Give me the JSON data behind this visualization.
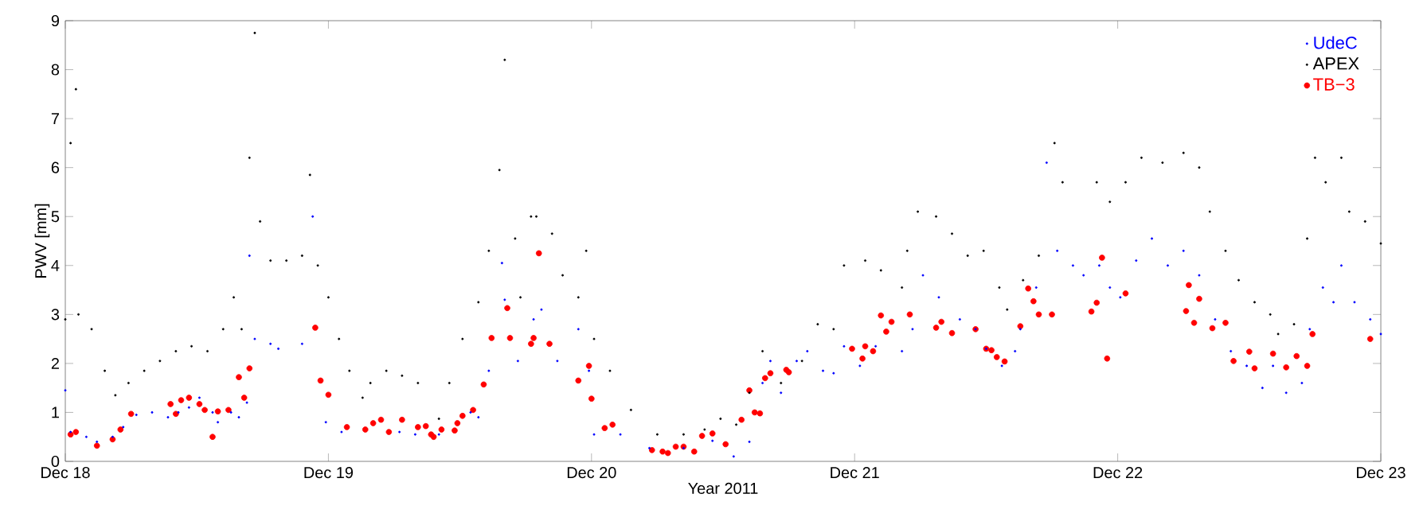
{
  "chart_data": {
    "type": "scatter",
    "xlabel": "Year 2011",
    "ylabel": "PWV [mm]",
    "xlim": [
      "2011-12-18",
      "2011-12-23"
    ],
    "ylim": [
      0,
      9
    ],
    "xticks": [
      {
        "value": "2011-12-18",
        "label": "Dec 18"
      },
      {
        "value": "2011-12-19",
        "label": "Dec 19"
      },
      {
        "value": "2011-12-20",
        "label": "Dec 20"
      },
      {
        "value": "2011-12-21",
        "label": "Dec 21"
      },
      {
        "value": "2011-12-22",
        "label": "Dec 22"
      },
      {
        "value": "2011-12-23",
        "label": "Dec 23"
      }
    ],
    "yticks": [
      0,
      1,
      2,
      3,
      4,
      5,
      6,
      7,
      8,
      9
    ],
    "legend": "top right",
    "series": [
      {
        "name": "UdeC",
        "color": "#0000ff",
        "x": [
          "2011-12-18T00:00",
          "2011-12-18T00:29",
          "2011-12-18T01:55",
          "2011-12-18T02:53",
          "2011-12-18T04:19",
          "2011-12-18T05:17",
          "2011-12-18T06:29",
          "2011-12-18T07:55",
          "2011-12-18T09:22",
          "2011-12-18T10:19",
          "2011-12-18T11:17",
          "2011-12-18T12:14",
          "2011-12-18T13:26",
          "2011-12-18T13:55",
          "2011-12-18T15:07",
          "2011-12-18T15:50",
          "2011-12-18T16:34",
          "2011-12-18T16:48",
          "2011-12-18T17:17",
          "2011-12-18T18:43",
          "2011-12-18T19:26",
          "2011-12-18T21:36",
          "2011-12-18T22:34",
          "2011-12-18T23:46",
          "2011-12-19T01:12",
          "2011-12-19T06:29",
          "2011-12-19T07:55",
          "2011-12-19T10:05",
          "2011-12-19T12:58",
          "2011-12-19T13:41",
          "2011-12-19T14:38",
          "2011-12-19T15:50",
          "2011-12-19T16:05",
          "2011-12-19T17:17",
          "2011-12-19T18:43",
          "2011-12-19T19:26",
          "2011-12-19T20:53",
          "2011-12-19T22:48",
          "2011-12-19T23:46",
          "2011-12-20T00:14",
          "2011-12-20T02:38",
          "2011-12-20T05:17",
          "2011-12-20T08:24",
          "2011-12-20T11:02",
          "2011-12-20T12:58",
          "2011-12-20T14:24",
          "2011-12-20T15:36",
          "2011-12-20T16:19",
          "2011-12-20T17:17",
          "2011-12-20T18:43",
          "2011-12-20T19:41",
          "2011-12-20T21:07",
          "2011-12-20T22:05",
          "2011-12-20T23:02",
          "2011-12-21T00:29",
          "2011-12-21T01:55",
          "2011-12-21T04:19",
          "2011-12-21T05:17",
          "2011-12-21T06:14",
          "2011-12-21T07:41",
          "2011-12-21T09:36",
          "2011-12-21T11:02",
          "2011-12-21T12:00",
          "2011-12-21T13:26",
          "2011-12-21T14:38",
          "2011-12-21T15:07",
          "2011-12-21T16:34",
          "2011-12-21T17:31",
          "2011-12-21T18:29",
          "2011-12-21T19:55",
          "2011-12-21T20:53",
          "2011-12-21T22:19",
          "2011-12-21T23:17",
          "2011-12-22T00:14",
          "2011-12-22T01:41",
          "2011-12-22T03:07",
          "2011-12-22T04:34",
          "2011-12-22T06:00",
          "2011-12-22T07:26",
          "2011-12-22T08:53",
          "2011-12-22T10:19",
          "2011-12-22T11:46",
          "2011-12-22T13:12",
          "2011-12-22T14:10",
          "2011-12-22T15:22",
          "2011-12-22T16:48",
          "2011-12-22T17:31",
          "2011-12-22T18:43",
          "2011-12-22T19:41",
          "2011-12-22T20:24",
          "2011-12-22T21:36",
          "2011-12-22T23:02",
          "2011-12-23T00:00"
        ],
        "values": [
          1.45,
          0.6,
          0.5,
          0.4,
          0.5,
          0.7,
          0.95,
          1.0,
          0.9,
          1.0,
          1.1,
          1.3,
          1.0,
          0.8,
          1.0,
          0.9,
          1.2,
          4.2,
          2.5,
          2.4,
          2.3,
          2.4,
          5.0,
          0.8,
          0.6,
          0.6,
          0.55,
          0.55,
          1.0,
          0.9,
          1.85,
          4.05,
          3.3,
          2.05,
          2.9,
          3.1,
          2.05,
          2.7,
          1.85,
          0.55,
          0.55,
          0.27,
          0.27,
          0.42,
          0.1,
          0.4,
          1.6,
          2.05,
          1.4,
          2.05,
          2.25,
          1.85,
          1.8,
          2.35,
          1.95,
          2.35,
          2.25,
          2.7,
          3.8,
          3.35,
          2.9,
          2.7,
          2.3,
          1.95,
          2.25,
          2.7,
          3.55,
          6.1,
          4.3,
          4.0,
          3.8,
          4.0,
          3.55,
          3.35,
          4.1,
          4.55,
          4.0,
          4.3,
          3.8,
          2.9,
          2.25,
          1.95,
          1.5,
          1.95,
          1.4,
          1.6,
          2.7,
          3.55,
          3.25,
          4.0,
          3.25,
          2.9,
          2.6
        ]
      },
      {
        "name": "APEX",
        "color": "#000000",
        "x": [
          "2011-12-18T00:00",
          "2011-12-18T00:29",
          "2011-12-18T00:58",
          "2011-12-18T01:12",
          "2011-12-18T02:24",
          "2011-12-18T03:36",
          "2011-12-18T04:34",
          "2011-12-18T05:46",
          "2011-12-18T07:12",
          "2011-12-18T08:38",
          "2011-12-18T10:05",
          "2011-12-18T11:31",
          "2011-12-18T12:58",
          "2011-12-18T14:24",
          "2011-12-18T15:22",
          "2011-12-18T16:05",
          "2011-12-18T16:48",
          "2011-12-18T17:17",
          "2011-12-18T17:46",
          "2011-12-18T18:43",
          "2011-12-18T20:10",
          "2011-12-18T21:36",
          "2011-12-18T22:19",
          "2011-12-18T23:02",
          "2011-12-19T00:00",
          "2011-12-19T00:58",
          "2011-12-19T01:55",
          "2011-12-19T03:07",
          "2011-12-19T03:50",
          "2011-12-19T05:17",
          "2011-12-19T06:43",
          "2011-12-19T08:10",
          "2011-12-19T10:05",
          "2011-12-19T11:02",
          "2011-12-19T12:14",
          "2011-12-19T13:41",
          "2011-12-19T14:38",
          "2011-12-19T15:36",
          "2011-12-19T16:05",
          "2011-12-19T17:02",
          "2011-12-19T17:31",
          "2011-12-19T18:29",
          "2011-12-19T18:58",
          "2011-12-19T20:24",
          "2011-12-19T21:22",
          "2011-12-19T22:48",
          "2011-12-19T23:31",
          "2011-12-20T00:14",
          "2011-12-20T01:41",
          "2011-12-20T03:36",
          "2011-12-20T06:00",
          "2011-12-20T08:24",
          "2011-12-20T10:19",
          "2011-12-20T11:46",
          "2011-12-20T13:12",
          "2011-12-20T14:24",
          "2011-12-20T15:36",
          "2011-12-20T17:17",
          "2011-12-20T19:12",
          "2011-12-20T20:38",
          "2011-12-20T22:05",
          "2011-12-20T23:02",
          "2011-12-21T00:58",
          "2011-12-21T02:24",
          "2011-12-21T04:19",
          "2011-12-21T04:48",
          "2011-12-21T05:46",
          "2011-12-21T07:26",
          "2011-12-21T08:53",
          "2011-12-21T10:19",
          "2011-12-21T11:46",
          "2011-12-21T13:12",
          "2011-12-21T13:55",
          "2011-12-21T15:22",
          "2011-12-21T16:48",
          "2011-12-21T18:14",
          "2011-12-21T18:58",
          "2011-12-21T22:05",
          "2011-12-21T23:17",
          "2011-12-22T00:43",
          "2011-12-22T02:10",
          "2011-12-22T04:05",
          "2011-12-22T06:00",
          "2011-12-22T07:26",
          "2011-12-22T08:24",
          "2011-12-22T09:50",
          "2011-12-22T11:02",
          "2011-12-22T12:29",
          "2011-12-22T13:55",
          "2011-12-22T14:38",
          "2011-12-22T16:05",
          "2011-12-22T17:17",
          "2011-12-22T18:00",
          "2011-12-22T18:58",
          "2011-12-22T20:24",
          "2011-12-22T21:07",
          "2011-12-22T22:34",
          "2011-12-23T00:00"
        ],
        "values": [
          2.9,
          6.5,
          7.6,
          3.0,
          2.7,
          1.85,
          1.35,
          1.6,
          1.85,
          2.05,
          2.25,
          2.35,
          2.25,
          2.7,
          3.35,
          2.7,
          6.2,
          8.75,
          4.9,
          4.1,
          4.1,
          4.2,
          5.85,
          4.0,
          3.35,
          2.5,
          1.85,
          1.3,
          1.6,
          1.85,
          1.75,
          1.6,
          0.87,
          1.6,
          2.5,
          3.25,
          4.3,
          5.95,
          8.2,
          4.55,
          3.35,
          5.0,
          5.0,
          4.65,
          3.8,
          3.35,
          4.3,
          2.5,
          1.85,
          1.05,
          0.55,
          0.55,
          0.65,
          0.87,
          0.75,
          1.4,
          2.25,
          1.6,
          2.05,
          2.8,
          2.7,
          4.0,
          4.1,
          3.9,
          3.55,
          4.3,
          5.1,
          5.0,
          4.65,
          4.2,
          4.3,
          3.55,
          3.1,
          3.7,
          4.2,
          6.5,
          5.7,
          5.7,
          5.3,
          5.7,
          6.2,
          6.1,
          6.3,
          6.0,
          5.1,
          4.3,
          3.7,
          3.25,
          3.0,
          2.6,
          2.8,
          4.55,
          6.2,
          5.7,
          6.2,
          5.1,
          4.9,
          4.45
        ]
      },
      {
        "name": "TB−3",
        "color": "#ff0000",
        "x": [
          "2011-12-18T00:29",
          "2011-12-18T00:58",
          "2011-12-18T02:53",
          "2011-12-18T04:19",
          "2011-12-18T05:02",
          "2011-12-18T06:00",
          "2011-12-18T09:36",
          "2011-12-18T10:05",
          "2011-12-18T10:34",
          "2011-12-18T11:17",
          "2011-12-18T12:14",
          "2011-12-18T12:43",
          "2011-12-18T13:26",
          "2011-12-18T13:55",
          "2011-12-18T14:53",
          "2011-12-18T15:50",
          "2011-12-18T16:19",
          "2011-12-18T16:48",
          "2011-12-18T22:48",
          "2011-12-18T23:17",
          "2011-12-19T00:00",
          "2011-12-19T01:41",
          "2011-12-19T03:22",
          "2011-12-19T04:05",
          "2011-12-19T04:48",
          "2011-12-19T05:31",
          "2011-12-19T06:43",
          "2011-12-19T08:10",
          "2011-12-19T08:53",
          "2011-12-19T09:22",
          "2011-12-19T09:36",
          "2011-12-19T10:19",
          "2011-12-19T11:31",
          "2011-12-19T11:46",
          "2011-12-19T12:14",
          "2011-12-19T13:12",
          "2011-12-19T14:10",
          "2011-12-19T14:53",
          "2011-12-19T16:19",
          "2011-12-19T16:34",
          "2011-12-19T18:29",
          "2011-12-19T18:43",
          "2011-12-19T19:12",
          "2011-12-19T20:10",
          "2011-12-19T22:48",
          "2011-12-19T23:46",
          "2011-12-20T00:00",
          "2011-12-20T01:12",
          "2011-12-20T01:55",
          "2011-12-20T05:31",
          "2011-12-20T06:29",
          "2011-12-20T06:58",
          "2011-12-20T07:41",
          "2011-12-20T08:24",
          "2011-12-20T09:22",
          "2011-12-20T10:05",
          "2011-12-20T11:02",
          "2011-12-20T12:14",
          "2011-12-20T13:41",
          "2011-12-20T14:24",
          "2011-12-20T14:53",
          "2011-12-20T15:22",
          "2011-12-20T15:50",
          "2011-12-20T16:19",
          "2011-12-20T17:46",
          "2011-12-20T18:00",
          "2011-12-20T23:46",
          "2011-12-21T00:43",
          "2011-12-21T00:58",
          "2011-12-21T01:41",
          "2011-12-21T02:24",
          "2011-12-21T02:53",
          "2011-12-21T03:22",
          "2011-12-21T05:02",
          "2011-12-21T07:26",
          "2011-12-21T07:55",
          "2011-12-21T08:53",
          "2011-12-21T11:02",
          "2011-12-21T12:00",
          "2011-12-21T12:29",
          "2011-12-21T12:58",
          "2011-12-21T13:41",
          "2011-12-21T15:07",
          "2011-12-21T15:50",
          "2011-12-21T16:19",
          "2011-12-21T16:48",
          "2011-12-21T18:00",
          "2011-12-21T21:36",
          "2011-12-21T22:05",
          "2011-12-21T22:34",
          "2011-12-21T23:02",
          "2011-12-22T00:43",
          "2011-12-22T06:14",
          "2011-12-22T06:29",
          "2011-12-22T06:58",
          "2011-12-22T07:26",
          "2011-12-22T08:38",
          "2011-12-22T09:50",
          "2011-12-22T10:34",
          "2011-12-22T12:00",
          "2011-12-22T12:29",
          "2011-12-22T14:10",
          "2011-12-22T15:22",
          "2011-12-22T16:19",
          "2011-12-22T17:17",
          "2011-12-22T17:46",
          "2011-12-22T23:02"
        ],
        "values": [
          0.55,
          0.6,
          0.32,
          0.45,
          0.65,
          0.97,
          1.17,
          0.97,
          1.25,
          1.3,
          1.17,
          1.05,
          0.5,
          1.02,
          1.05,
          1.72,
          1.3,
          1.9,
          2.73,
          1.65,
          1.36,
          0.7,
          0.65,
          0.78,
          0.85,
          0.6,
          0.85,
          0.7,
          0.72,
          0.55,
          0.5,
          0.65,
          0.63,
          0.78,
          0.93,
          1.05,
          1.57,
          2.52,
          3.13,
          2.52,
          2.4,
          2.52,
          4.25,
          2.4,
          1.65,
          1.95,
          1.28,
          0.68,
          0.75,
          0.23,
          0.2,
          0.17,
          0.3,
          0.3,
          0.2,
          0.52,
          0.57,
          0.35,
          0.85,
          1.45,
          1.0,
          0.98,
          1.7,
          1.8,
          1.87,
          1.82,
          2.3,
          2.1,
          2.35,
          2.25,
          2.98,
          2.65,
          2.85,
          3.0,
          2.73,
          2.85,
          2.62,
          2.7,
          2.3,
          2.27,
          2.13,
          2.04,
          2.76,
          3.53,
          3.27,
          3.0,
          3.0,
          3.06,
          3.24,
          4.16,
          2.1,
          3.43,
          3.07,
          3.6,
          2.83,
          3.32,
          2.72,
          2.83,
          2.05,
          2.24,
          1.9,
          2.2,
          1.92,
          2.15,
          1.95,
          2.6,
          2.5
        ]
      }
    ]
  }
}
